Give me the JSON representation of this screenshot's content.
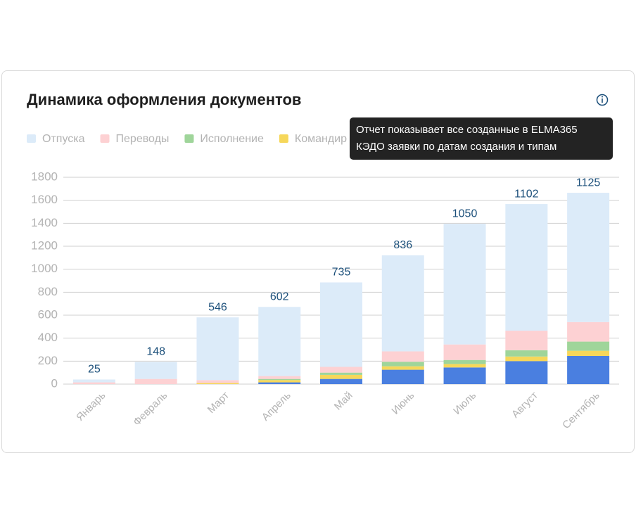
{
  "chart_data": {
    "type": "bar",
    "stacked": true,
    "title": "Динамика оформления документов",
    "categories": [
      "Январь",
      "Февраль",
      "Март",
      "Апрель",
      "Май",
      "Июнь",
      "Июль",
      "Август",
      "Сентябрь"
    ],
    "series": [
      {
        "name": null,
        "color": "#4a7fe0",
        "values": [
          0,
          0,
          0,
          15,
          45,
          125,
          145,
          200,
          245
        ]
      },
      {
        "name": "Командир",
        "color": "#f6d75a",
        "values": [
          0,
          0,
          10,
          20,
          35,
          30,
          30,
          40,
          45
        ]
      },
      {
        "name": "Исполнение",
        "color": "#9fd59a",
        "values": [
          0,
          0,
          0,
          10,
          20,
          40,
          35,
          55,
          80
        ]
      },
      {
        "name": "Переводы",
        "color": "#fdd1d3",
        "values": [
          15,
          45,
          25,
          25,
          50,
          90,
          135,
          170,
          170
        ]
      },
      {
        "name": "Отпуска",
        "color": "#dcebf9",
        "values": [
          25,
          148,
          546,
          602,
          735,
          836,
          1050,
          1102,
          1125
        ],
        "labels": true
      }
    ],
    "ylim": [
      0,
      1800
    ],
    "yticks": [
      0,
      200,
      400,
      600,
      800,
      1000,
      1200,
      1400,
      1600,
      1800
    ],
    "grid": true
  },
  "tooltip": {
    "lines": [
      "Отчет показывает все созданные в ELMA365",
      "КЭДО заявки по датам создания и типам"
    ]
  }
}
